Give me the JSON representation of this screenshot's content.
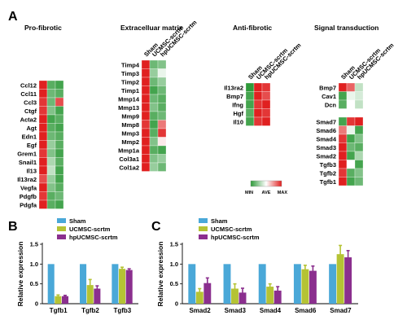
{
  "panel_labels": [
    "A",
    "B",
    "C"
  ],
  "heatmap": {
    "columns": [
      "Sham",
      "UCMSC-scrtm",
      "hpUCMSC-scrtm"
    ],
    "colors": {
      "min": "#2f9a3a",
      "ave": "#ffffff",
      "max": "#e02020"
    },
    "legend": {
      "min": "MIN",
      "ave": "AVE",
      "max": "MAX"
    },
    "groups": [
      {
        "title": "Pro-fibrotic",
        "show_columns": false,
        "blocks": [
          {
            "genes": [
              "Ccl12",
              "Ccl11",
              "Ccl3",
              "Ctgf",
              "Acta2",
              "Agt",
              "Edn1",
              "Egf",
              "Grem1",
              "Snail1",
              "Il13",
              "Il13ra2",
              "Vegfa",
              "Pdgfb",
              "Pdgfa"
            ],
            "values": [
              [
                1.0,
                -0.8,
                -0.9
              ],
              [
                1.0,
                -0.7,
                -0.8
              ],
              [
                0.9,
                -0.7,
                0.8
              ],
              [
                0.9,
                -0.6,
                -0.9
              ],
              [
                1.0,
                -0.9,
                -0.8
              ],
              [
                1.0,
                -0.8,
                -0.9
              ],
              [
                1.0,
                -0.7,
                -0.8
              ],
              [
                1.0,
                -0.5,
                -0.8
              ],
              [
                0.9,
                -0.6,
                -0.9
              ],
              [
                1.0,
                -0.4,
                -0.8
              ],
              [
                1.0,
                -0.3,
                -0.9
              ],
              [
                0.8,
                -0.5,
                -0.9
              ],
              [
                1.0,
                -0.6,
                -0.8
              ],
              [
                0.9,
                -0.8,
                -0.7
              ],
              [
                1.0,
                -0.8,
                -0.9
              ]
            ]
          }
        ]
      },
      {
        "title": "Extracelluar matrix",
        "show_columns": true,
        "blocks": [
          {
            "genes": [
              "Timp4",
              "Timp3",
              "Timp2",
              "Timp1",
              "Mmp14",
              "Mmp13",
              "Mmp9",
              "Mmp8",
              "Mmp3",
              "Mmp2",
              "Mmp1a",
              "Col3a1",
              "Col1a2"
            ],
            "values": [
              [
                1.0,
                -0.7,
                -0.6
              ],
              [
                1.0,
                -0.5,
                -0.1
              ],
              [
                1.0,
                -0.7,
                -0.5
              ],
              [
                1.0,
                -0.9,
                -0.7
              ],
              [
                1.0,
                -0.7,
                -0.8
              ],
              [
                1.0,
                -0.6,
                -0.8
              ],
              [
                1.0,
                -0.8,
                -0.7
              ],
              [
                0.9,
                -0.9,
                0.6
              ],
              [
                1.0,
                -0.8,
                0.9
              ],
              [
                1.0,
                -0.6,
                0.1
              ],
              [
                1.0,
                -0.8,
                -0.9
              ],
              [
                1.0,
                -0.6,
                -0.5
              ],
              [
                1.0,
                -0.5,
                -0.7
              ]
            ]
          }
        ]
      },
      {
        "title": "Anti-fibrotic",
        "show_columns": true,
        "blocks": [
          {
            "genes": [
              "Il13ra2",
              "Bmp7",
              "Ifng",
              "Hgf",
              "Il10"
            ],
            "values": [
              [
                -1.0,
                1.0,
                0.9
              ],
              [
                -0.9,
                1.0,
                0.8
              ],
              [
                -0.9,
                0.9,
                1.0
              ],
              [
                -0.8,
                1.0,
                0.9
              ],
              [
                -0.9,
                0.9,
                1.0
              ]
            ]
          }
        ]
      },
      {
        "title": "Signal transduction",
        "show_columns": true,
        "blocks": [
          {
            "genes": [
              "Bmp7",
              "Cav1",
              "Dcn"
            ],
            "values": [
              [
                1.0,
                0.7,
                -0.3
              ],
              [
                -0.9,
                -0.1,
                -0.2
              ],
              [
                -0.8,
                0.0,
                -0.3
              ]
            ]
          },
          {
            "genes": [
              "Smad7",
              "Smad6",
              "Smad4",
              "Smad3",
              "Smad2",
              "Tgfb3",
              "Tgfb2",
              "Tgfb1"
            ],
            "values": [
              [
                -0.9,
                0.9,
                1.0
              ],
              [
                0.6,
                -0.1,
                -0.9
              ],
              [
                0.9,
                -0.9,
                -0.6
              ],
              [
                1.0,
                -0.7,
                -0.8
              ],
              [
                1.0,
                -0.9,
                -0.4
              ],
              [
                1.0,
                0.0,
                -0.9
              ],
              [
                0.9,
                -0.8,
                -0.6
              ],
              [
                1.0,
                -0.9,
                -0.7
              ]
            ]
          }
        ]
      }
    ]
  },
  "chart_data": [
    {
      "type": "bar",
      "panel": "B",
      "categories": [
        "Tgfb1",
        "Tgfb2",
        "Tgfb3"
      ],
      "series": [
        {
          "name": "Sham",
          "color": "#4aa8d8",
          "values": [
            1.0,
            1.0,
            1.0
          ],
          "errors": [
            0,
            0,
            0
          ]
        },
        {
          "name": "UCMSC-scrtm",
          "color": "#b5c334",
          "values": [
            0.19,
            0.47,
            0.88
          ],
          "errors": [
            0.03,
            0.14,
            0.04
          ]
        },
        {
          "name": "hpUCMSC-scrtm",
          "color": "#8b2f8e",
          "values": [
            0.19,
            0.38,
            0.85
          ],
          "errors": [
            0.02,
            0.07,
            0.03
          ]
        }
      ],
      "ylabel": "Relative expression",
      "ylim": [
        0,
        1.5
      ],
      "yticks": [
        "0",
        "0.5",
        "1.0",
        "1.5"
      ],
      "legend": "top-left"
    },
    {
      "type": "bar",
      "panel": "C",
      "categories": [
        "Smad2",
        "Smad3",
        "Smad4",
        "Smad6",
        "Smad7"
      ],
      "series": [
        {
          "name": "Sham",
          "color": "#4aa8d8",
          "values": [
            1.0,
            1.0,
            1.0,
            1.0,
            1.0
          ],
          "errors": [
            0,
            0,
            0,
            0,
            0
          ]
        },
        {
          "name": "UCMSC-scrtm",
          "color": "#b5c334",
          "values": [
            0.3,
            0.38,
            0.43,
            0.87,
            1.25
          ],
          "errors": [
            0.08,
            0.12,
            0.07,
            0.1,
            0.22
          ]
        },
        {
          "name": "hpUCMSC-scrtm",
          "color": "#8b2f8e",
          "values": [
            0.52,
            0.28,
            0.33,
            0.83,
            1.17
          ],
          "errors": [
            0.13,
            0.11,
            0.1,
            0.12,
            0.17
          ]
        }
      ],
      "ylabel": "Relative expression",
      "ylim": [
        0,
        1.5
      ],
      "yticks": [
        "0",
        "0.5",
        "1.0",
        "1.5"
      ],
      "legend": "top-left"
    }
  ]
}
